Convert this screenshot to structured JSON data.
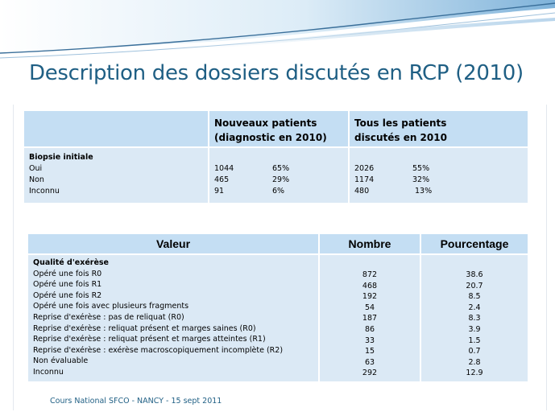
{
  "slide": {
    "title": "Description des dossiers discutés en RCP (2010)",
    "footer": "Cours National SFCO - NANCY - 15 sept 2011"
  },
  "table1": {
    "col2_header_line1": "Nouveaux patients",
    "col2_header_line2": "(diagnostic  en 2010)",
    "col3_header_line1": "Tous  les patients",
    "col3_header_line2": "discutés  en 2010",
    "section": "Biopsie initiale",
    "rows": [
      {
        "label": "Oui",
        "new_n": "1044",
        "new_pct": "65%",
        "all_n": "2026",
        "all_pct": "55%"
      },
      {
        "label": "Non",
        "new_n": "465",
        "new_pct": "29%",
        "all_n": "1174",
        "all_pct": "32%"
      },
      {
        "label": "Inconnu",
        "new_n": "91",
        "new_pct": "6%",
        "all_n": "480",
        "all_pct": "13%"
      }
    ]
  },
  "table2": {
    "headers": [
      "Valeur",
      "Nombre",
      "Pourcentage"
    ],
    "section": "Qualité d'exérèse",
    "rows": [
      {
        "label": "Opéré une fois R0",
        "n": "872",
        "pct": "38.6"
      },
      {
        "label": "Opéré une fois R1",
        "n": "468",
        "pct": "20.7"
      },
      {
        "label": "Opéré une fois R2",
        "n": "192",
        "pct": "8.5"
      },
      {
        "label": "Opéré une fois avec plusieurs fragments",
        "n": "54",
        "pct": "2.4"
      },
      {
        "label": "Reprise d'exérèse : pas de reliquat (R0)",
        "n": "187",
        "pct": "8.3"
      },
      {
        "label": "Reprise d'exérèse : reliquat présent et marges saines (R0)",
        "n": "86",
        "pct": "3.9"
      },
      {
        "label": "Reprise d'exérèse : reliquat présent et marges atteintes (R1)",
        "n": "33",
        "pct": "1.5"
      },
      {
        "label": "Reprise d'exérèse : exérèse macroscopiquement  incomplète  (R2)",
        "n": "15",
        "pct": "0.7"
      },
      {
        "label": "Non évaluable",
        "n": "63",
        "pct": "2.8"
      },
      {
        "label": "Inconnu",
        "n": "292",
        "pct": "12.9"
      }
    ]
  }
}
